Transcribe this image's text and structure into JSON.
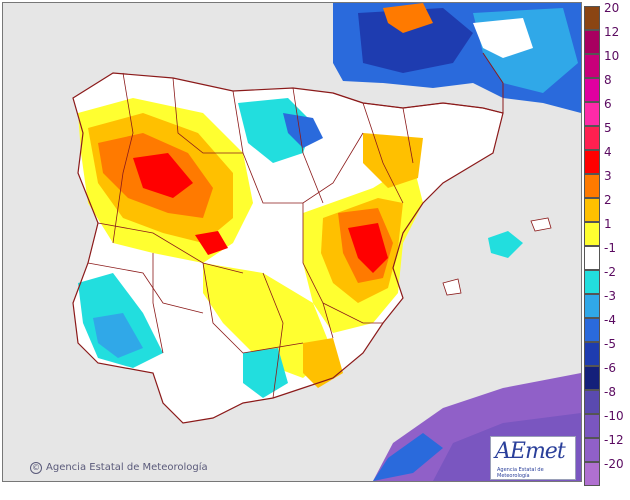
{
  "legend": {
    "entries": [
      {
        "label": "20",
        "color": "#8b4513"
      },
      {
        "label": "12",
        "color": "#a80060"
      },
      {
        "label": "10",
        "color": "#c8007a"
      },
      {
        "label": "8",
        "color": "#e000a0"
      },
      {
        "label": "6",
        "color": "#ff2aa8"
      },
      {
        "label": "5",
        "color": "#ff2050"
      },
      {
        "label": "4",
        "color": "#ff0000"
      },
      {
        "label": "3",
        "color": "#ff7a00"
      },
      {
        "label": "2",
        "color": "#ffc000"
      },
      {
        "label": "1",
        "color": "#ffff30"
      },
      {
        "label": "-1",
        "color": "#ffffff"
      },
      {
        "label": "-2",
        "color": "#22dede"
      },
      {
        "label": "-3",
        "color": "#30a8e8"
      },
      {
        "label": "-4",
        "color": "#2a6adc"
      },
      {
        "label": "-5",
        "color": "#1e3cb0"
      },
      {
        "label": "-6",
        "color": "#14207a"
      },
      {
        "label": "-8",
        "color": "#5a4ab0"
      },
      {
        "label": "-10",
        "color": "#7a56c0"
      },
      {
        "label": "-12",
        "color": "#9060c8"
      },
      {
        "label": "-20",
        "color": "#b070d0"
      }
    ]
  },
  "footer": {
    "copyright": "Agencia Estatal de Meteorología",
    "logo_text": "AEmet",
    "logo_subtitle": "Agencia Estatal de Meteorología"
  },
  "colors": {
    "sea": "#e6e6e6",
    "land": "#ffffff",
    "borders": "#8b1a1a"
  }
}
